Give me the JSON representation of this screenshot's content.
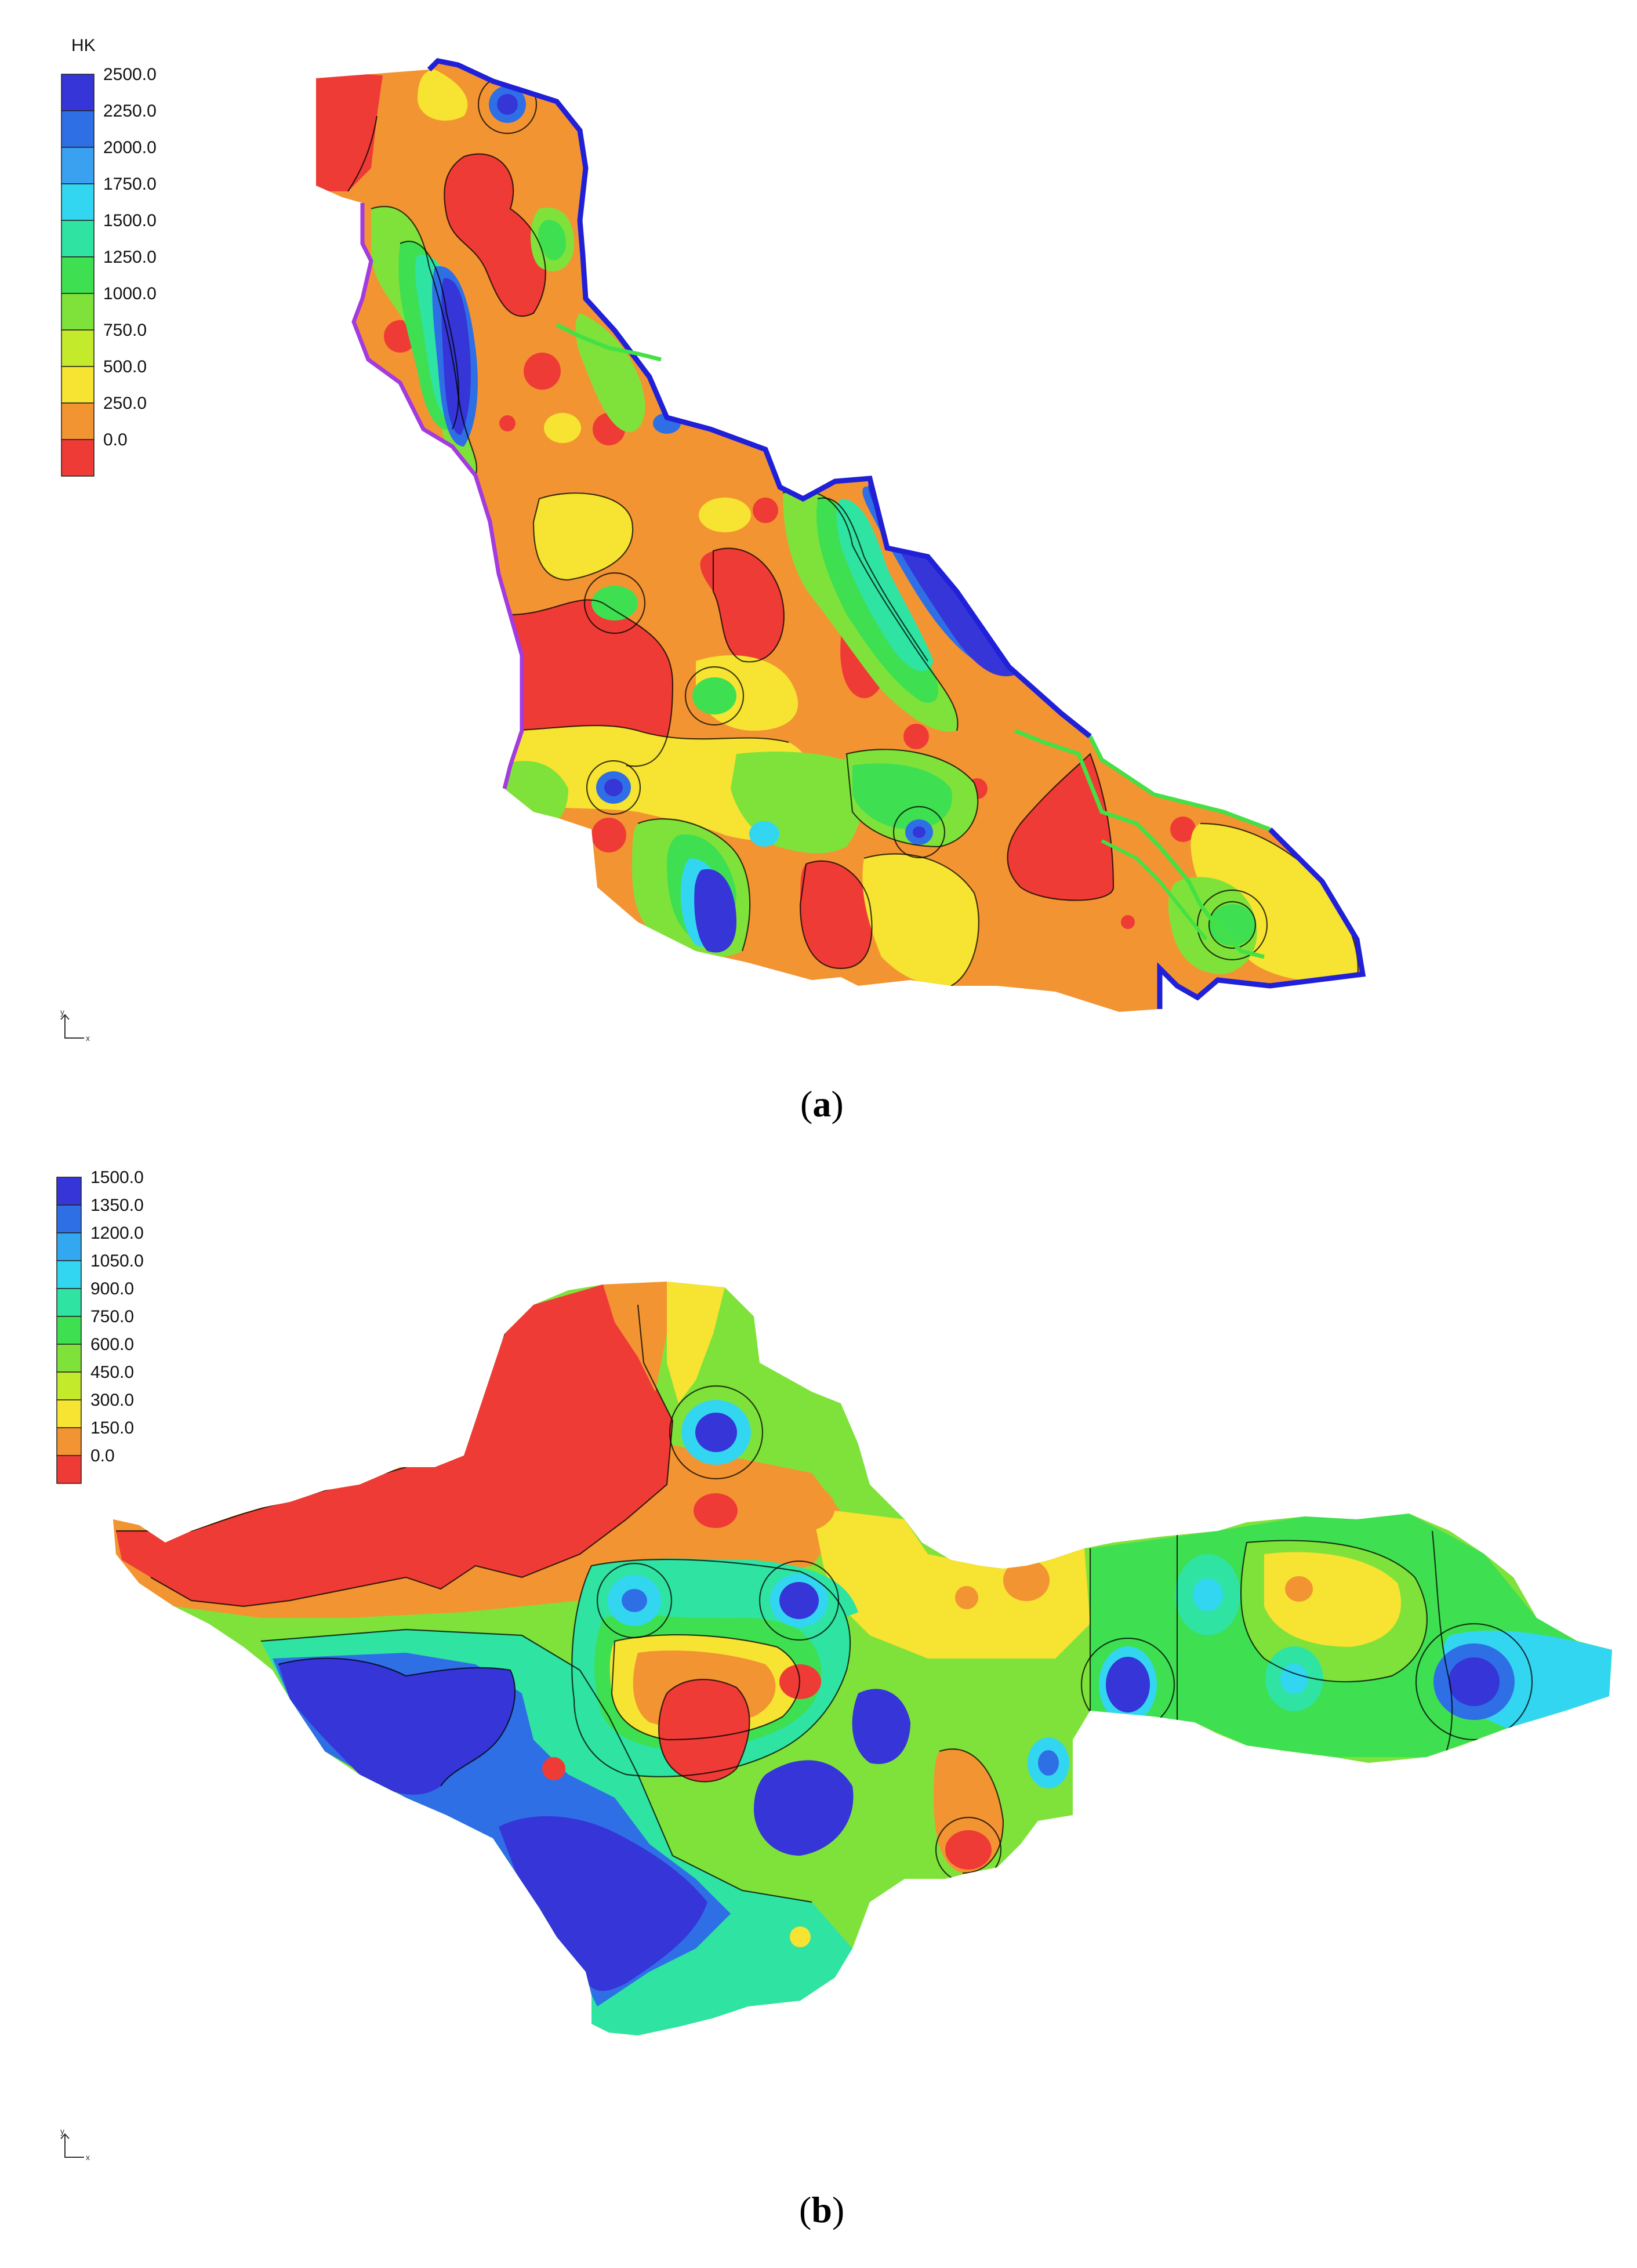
{
  "panel_a": {
    "legend_title": "HK",
    "legend_labels": [
      "2500.0",
      "2250.0",
      "2000.0",
      "1750.0",
      "1500.0",
      "1250.0",
      "1000.0",
      "750.0",
      "500.0",
      "250.0",
      "0.0"
    ],
    "legend_colors": [
      "#3535d8",
      "#2f6fe6",
      "#3aa0f0",
      "#33d6f0",
      "#2fe3a3",
      "#3fdf52",
      "#7fe23a",
      "#c4ea2c",
      "#f6e332",
      "#f39433",
      "#ef3b36"
    ],
    "caption_letter": "a"
  },
  "panel_b": {
    "legend_labels": [
      "1500.0",
      "1350.0",
      "1200.0",
      "1050.0",
      "900.0",
      "750.0",
      "600.0",
      "450.0",
      "300.0",
      "150.0",
      "0.0"
    ],
    "legend_colors": [
      "#3535d8",
      "#2f6fe6",
      "#33a7f0",
      "#33d6f0",
      "#2fe3a3",
      "#3fdf52",
      "#7fe23a",
      "#c4ea2c",
      "#f6e332",
      "#f39433",
      "#ef3b36"
    ],
    "caption_letter": "b"
  },
  "colors": {
    "boundary_blue": "#2020d8",
    "boundary_purple": "#a43adf",
    "river_green": "#44e044"
  }
}
